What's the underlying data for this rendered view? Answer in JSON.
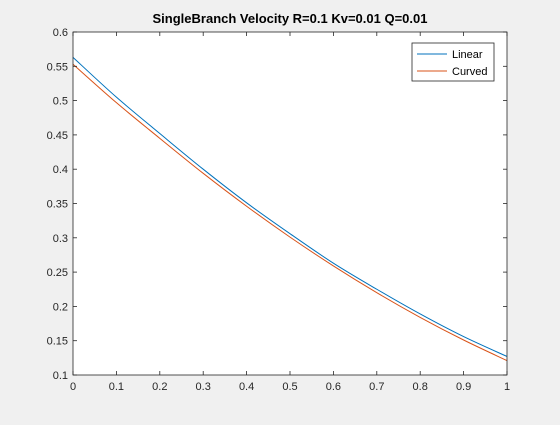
{
  "chart_data": {
    "type": "line",
    "title": "SingleBranch Velocity R=0.1 Kv=0.01 Q=0.01",
    "xlabel": "",
    "ylabel": "",
    "xlim": [
      0,
      1
    ],
    "ylim": [
      0.1,
      0.6
    ],
    "xticks": [
      "0",
      "0.1",
      "0.2",
      "0.3",
      "0.4",
      "0.5",
      "0.6",
      "0.7",
      "0.8",
      "0.9",
      "1"
    ],
    "yticks": [
      "0.1",
      "0.15",
      "0.2",
      "0.25",
      "0.3",
      "0.35",
      "0.4",
      "0.45",
      "0.5",
      "0.55",
      "0.6"
    ],
    "grid": false,
    "legend_position": "top-right",
    "x": [
      0,
      0.1,
      0.2,
      0.3,
      0.4,
      0.5,
      0.6,
      0.7,
      0.8,
      0.9,
      1.0
    ],
    "series": [
      {
        "name": "Linear",
        "color": "#0072BD",
        "values": [
          0.563,
          0.505,
          0.452,
          0.4,
          0.351,
          0.306,
          0.263,
          0.225,
          0.189,
          0.156,
          0.127
        ]
      },
      {
        "name": "Curved",
        "color": "#D95319",
        "values": [
          0.553,
          0.497,
          0.445,
          0.394,
          0.346,
          0.301,
          0.259,
          0.22,
          0.184,
          0.151,
          0.121
        ]
      }
    ]
  },
  "colors": {
    "figure_background": "#f0f0f0",
    "axes_background": "#ffffff",
    "axes_line": "#262626"
  }
}
